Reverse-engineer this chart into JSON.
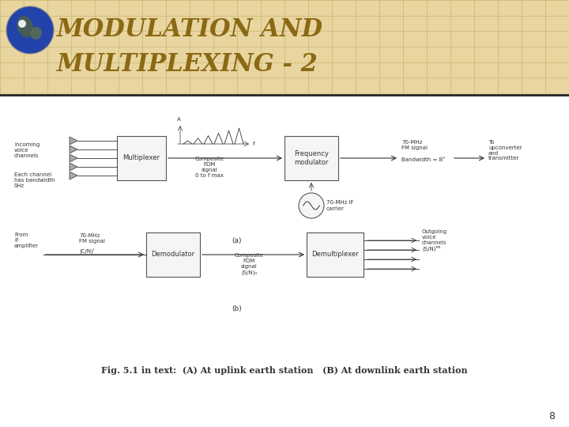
{
  "title_line1": "MODULATION AND",
  "title_line2": "MULTIPLEXING - 2",
  "title_color": "#8B6914",
  "title_fontsize": 22,
  "header_bg_color": "#E8D5A0",
  "header_grid_color": "#C8B870",
  "bg_color": "#FFFFFF",
  "separator_color": "#222222",
  "diagram_color": "#333333",
  "caption": "Fig. 5.1 in text:  (A) At uplink earth station   (B) At downlink earth station",
  "page_number": "8",
  "box_fill": "#F5F5F5",
  "box_edge": "#555555"
}
